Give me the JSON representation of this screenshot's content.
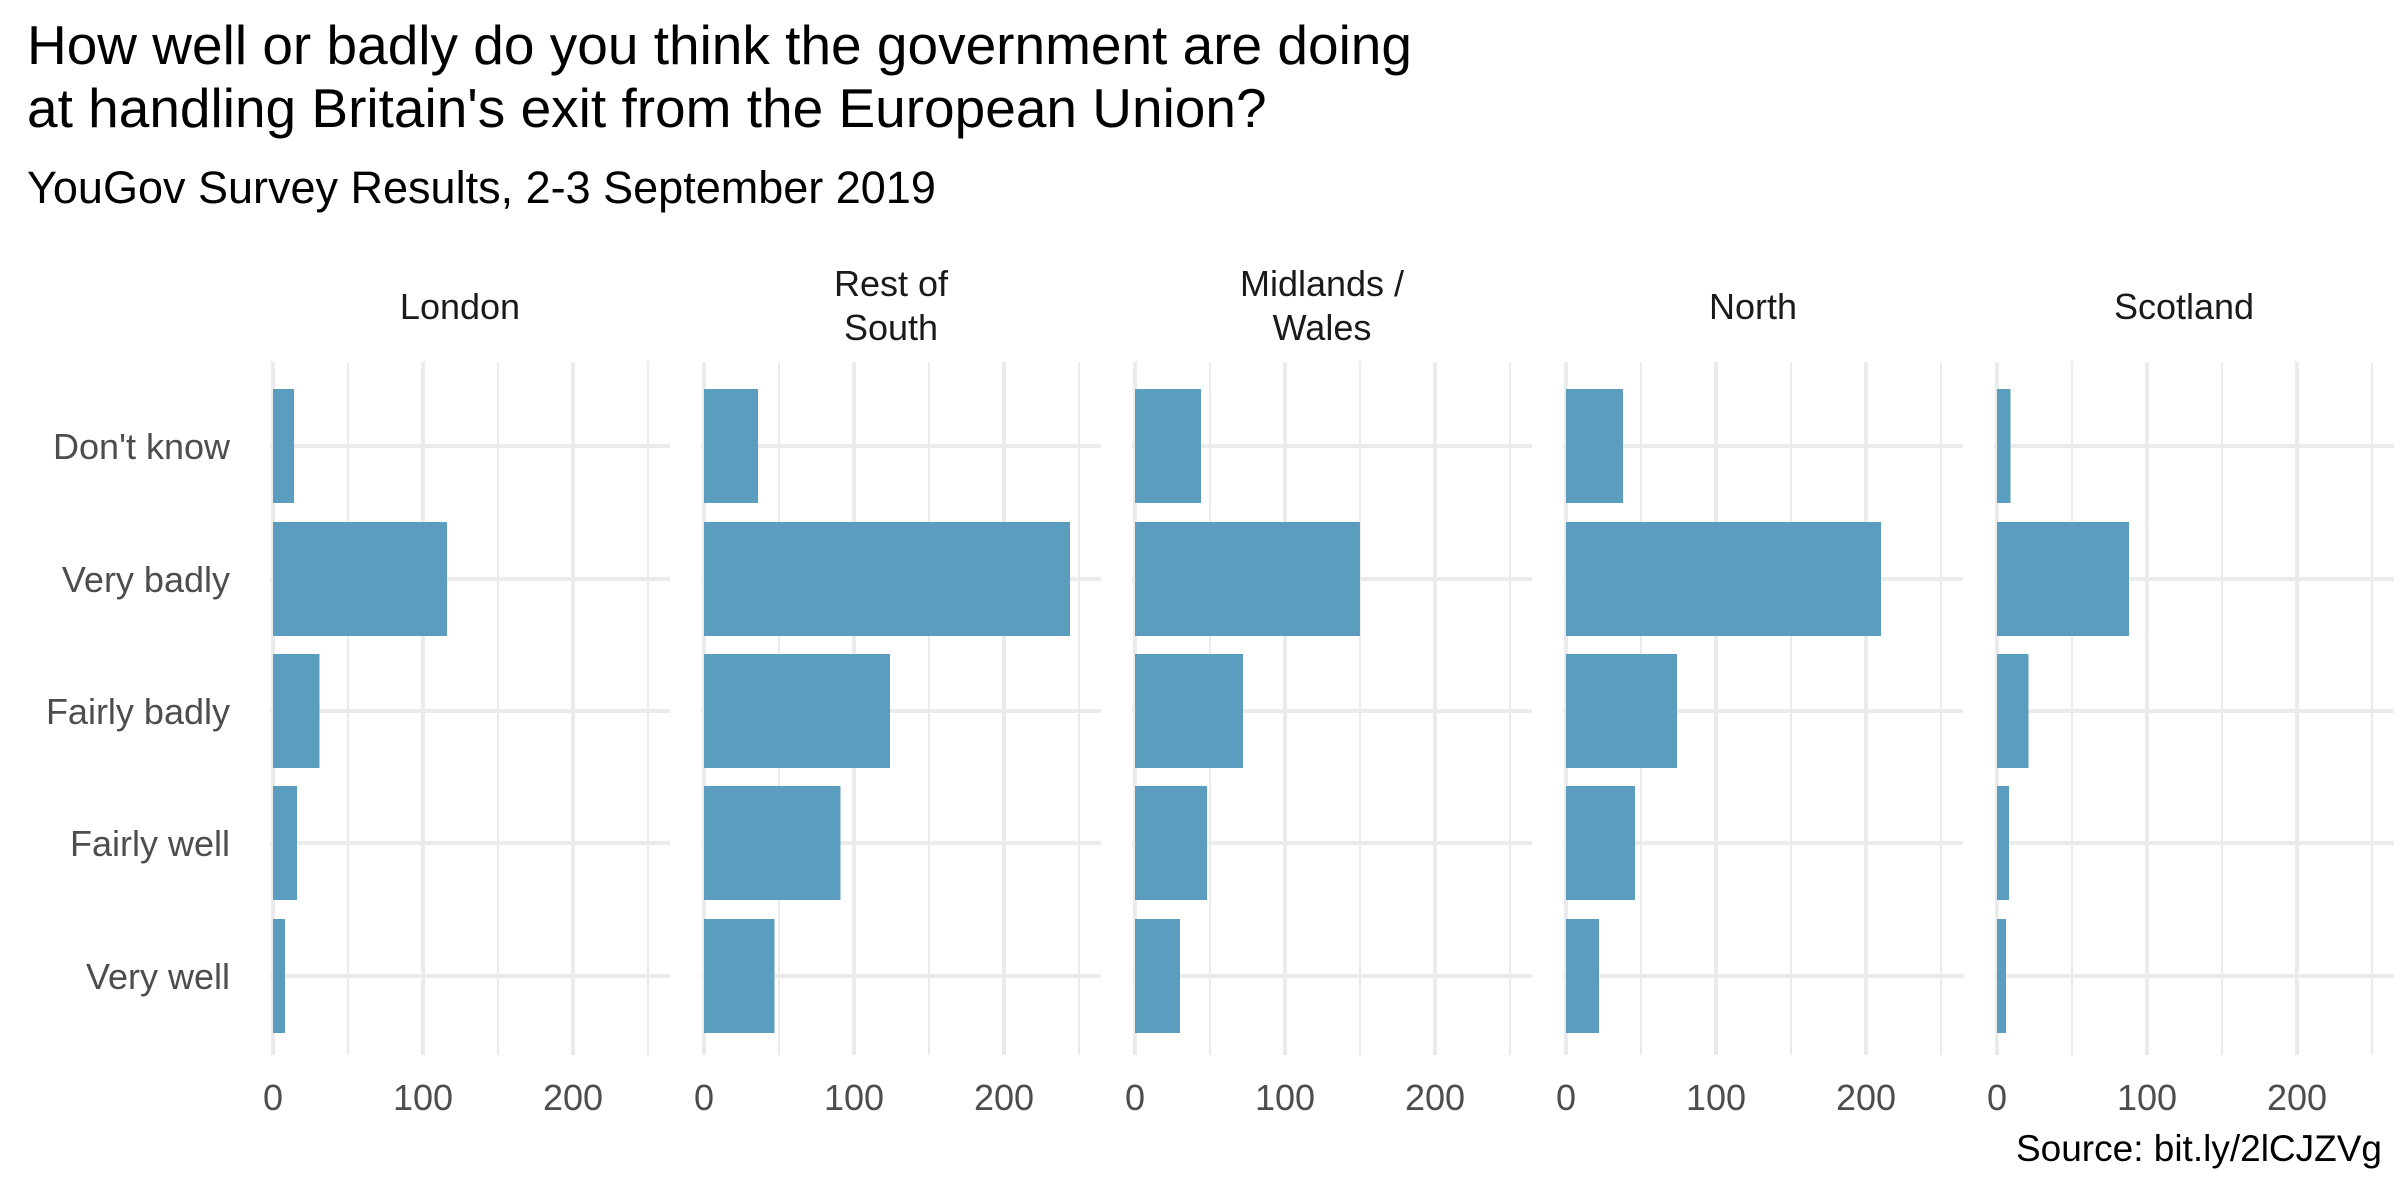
{
  "title": "How well or badly do you think the government are doing\nat handling Britain's exit from the European Union?",
  "subtitle": "YouGov Survey Results, 2-3 September 2019",
  "caption": "Source: bit.ly/2lCJZVg",
  "colors": {
    "bar": "#5A9DBF",
    "grid": "#EBEBEB",
    "text": "#000000",
    "axis_text": "#4D4D4D"
  },
  "chart_data": {
    "type": "bar",
    "orientation": "horizontal",
    "facet_by": "region",
    "categories": [
      "Don't know",
      "Very badly",
      "Fairly badly",
      "Fairly well",
      "Very well"
    ],
    "xlim": [
      0,
      250
    ],
    "x_ticks": [
      0,
      100,
      200
    ],
    "grid": true,
    "panels": [
      {
        "label": "London",
        "values": [
          14,
          116,
          31,
          16,
          8
        ]
      },
      {
        "label": "Rest of\nSouth",
        "values": [
          36,
          244,
          124,
          91,
          47
        ]
      },
      {
        "label": "Midlands /\nWales",
        "values": [
          44,
          150,
          72,
          48,
          30
        ]
      },
      {
        "label": "North",
        "values": [
          38,
          210,
          74,
          46,
          22
        ]
      },
      {
        "label": "Scotland",
        "values": [
          9,
          88,
          21,
          8,
          6
        ]
      }
    ]
  }
}
